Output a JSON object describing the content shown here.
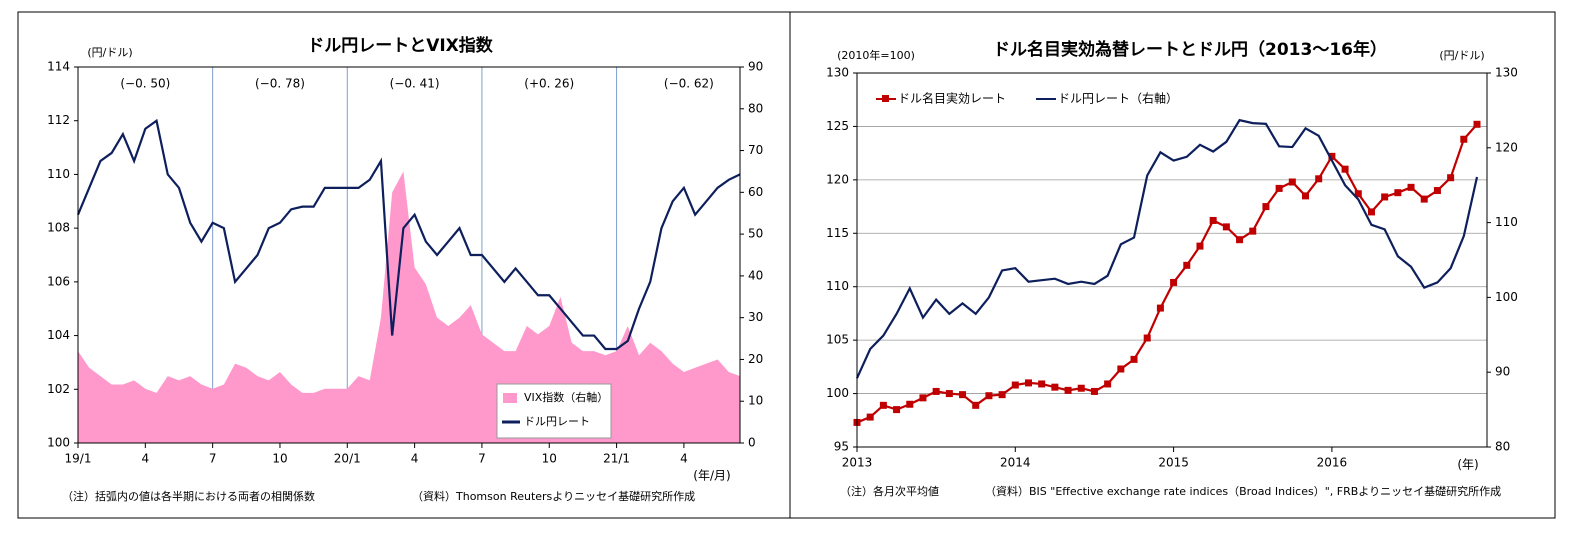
{
  "chart_data": [
    {
      "type": "line",
      "title": "ドル円レートとVIX指数",
      "y_label": "(円/ドル)",
      "x_label": "(年/月)",
      "note": "（注）括弧内の値は各半期における両者の相関係数",
      "source": "（資料）Thomson Reutersよりニッセイ基礎研究所作成",
      "categories": [
        "19/1",
        null,
        null,
        null,
        null,
        null,
        "4",
        null,
        null,
        null,
        null,
        null,
        "7",
        null,
        null,
        null,
        null,
        null,
        "10",
        null,
        null,
        null,
        null,
        null,
        "20/1",
        null,
        null,
        null,
        null,
        null,
        "4",
        null,
        null,
        null,
        null,
        null,
        "7",
        null,
        null,
        null,
        null,
        null,
        "10",
        null,
        null,
        null,
        null,
        null,
        "21/1",
        null,
        null,
        null,
        null,
        null,
        "4",
        null,
        null,
        null,
        null,
        null
      ],
      "ylim": [
        100,
        114
      ],
      "yticks": [
        100,
        102,
        104,
        106,
        108,
        110,
        112,
        114
      ],
      "y2lim": [
        0,
        90
      ],
      "y2ticks": [
        0,
        10,
        20,
        30,
        40,
        50,
        60,
        70,
        80,
        90
      ],
      "annotations": [
        {
          "text": "(−0. 50)",
          "color": "#ff0000"
        },
        {
          "text": "(−0. 78)",
          "color": "#ff0000"
        },
        {
          "text": "(−0. 41)",
          "color": "#ff0000"
        },
        {
          "text": "(+0. 26)",
          "color": "#000000"
        },
        {
          "text": "(−0. 62)",
          "color": "#ff0000"
        }
      ],
      "series": [
        {
          "name": "VIX指数（右軸）",
          "type": "area",
          "axis": "y2",
          "color": "#ff99cc",
          "values": [
            22,
            18,
            16,
            14,
            14,
            15,
            13,
            12,
            16,
            15,
            16,
            14,
            13,
            14,
            19,
            18,
            16,
            15,
            17,
            14,
            12,
            12,
            13,
            13,
            13,
            16,
            15,
            30,
            60,
            65,
            42,
            38,
            30,
            28,
            30,
            33,
            26,
            24,
            22,
            22,
            28,
            26,
            28,
            35,
            24,
            22,
            22,
            21,
            22,
            28,
            21,
            24,
            22,
            19,
            17,
            18,
            19,
            20,
            17,
            16
          ]
        },
        {
          "name": "ドル円レート",
          "type": "line",
          "color": "#0d1f5c",
          "values": [
            108.5,
            109.5,
            110.5,
            110.8,
            111.5,
            110.5,
            111.7,
            112,
            110,
            109.5,
            108.2,
            107.5,
            108.2,
            108,
            106,
            106.5,
            107,
            108,
            108.2,
            108.7,
            108.8,
            108.8,
            109.5,
            109.5,
            109.5,
            109.5,
            109.8,
            110.5,
            104,
            108,
            108.5,
            107.5,
            107,
            107.5,
            108,
            107,
            107,
            106.5,
            106,
            106.5,
            106,
            105.5,
            105.5,
            105,
            104.5,
            104,
            104,
            103.5,
            103.5,
            103.8,
            105,
            106,
            108,
            109,
            109.5,
            108.5,
            109,
            109.5,
            109.8,
            110
          ]
        }
      ]
    },
    {
      "type": "line",
      "title": "ドル名目実効為替レートとドル円（2013～16年）",
      "y_label": "(2010年=100)",
      "y2_label": "(円/ドル)",
      "x_label": "(年)",
      "note": "（注）各月次平均値",
      "source": "（資料）BIS \"Effective exchange rate indices（Broad Indices）\", FRBよりニッセイ基礎研究所作成",
      "categories": [
        "2013",
        null,
        null,
        null,
        null,
        null,
        null,
        null,
        null,
        null,
        null,
        null,
        "2014",
        null,
        null,
        null,
        null,
        null,
        null,
        null,
        null,
        null,
        null,
        null,
        "2015",
        null,
        null,
        null,
        null,
        null,
        null,
        null,
        null,
        null,
        null,
        null,
        "2016",
        null,
        null,
        null,
        null,
        null,
        null,
        null,
        null,
        null,
        null,
        null
      ],
      "ylim": [
        95,
        130
      ],
      "yticks": [
        95,
        100,
        105,
        110,
        115,
        120,
        125,
        130
      ],
      "y2lim": [
        80,
        130
      ],
      "y2ticks": [
        80,
        90,
        100,
        110,
        120,
        130
      ],
      "series": [
        {
          "name": "ドル名目実効レート",
          "type": "line",
          "markers": true,
          "color": "#c00000",
          "values": [
            97.3,
            97.8,
            98.9,
            98.5,
            99.0,
            99.6,
            100.2,
            100.0,
            99.9,
            98.9,
            99.8,
            99.9,
            100.8,
            101.0,
            100.9,
            100.6,
            100.3,
            100.5,
            100.2,
            100.9,
            102.3,
            103.2,
            105.2,
            108.0,
            110.4,
            112.0,
            113.8,
            116.2,
            115.6,
            114.4,
            115.2,
            117.5,
            119.2,
            119.8,
            118.5,
            120.1,
            122.2,
            121.0,
            118.7,
            117.0,
            118.4,
            118.8,
            119.3,
            118.2,
            119.0,
            120.2,
            123.8,
            125.2
          ]
        },
        {
          "name": "ドル円レート（右軸）",
          "type": "line",
          "axis": "y2",
          "color": "#0d1f5c",
          "values": [
            89.2,
            93.1,
            94.9,
            97.8,
            101.2,
            97.3,
            99.7,
            97.8,
            99.2,
            97.8,
            100.0,
            103.6,
            103.9,
            102.1,
            102.3,
            102.5,
            101.8,
            102.1,
            101.8,
            102.9,
            107.1,
            108.0,
            116.3,
            119.4,
            118.3,
            118.8,
            120.4,
            119.5,
            120.8,
            123.7,
            123.3,
            123.2,
            120.2,
            120.1,
            122.6,
            121.6,
            118.3,
            115.0,
            113.1,
            109.7,
            109.1,
            105.5,
            104.1,
            101.3,
            102.0,
            103.9,
            108.2,
            116.1
          ]
        }
      ]
    }
  ]
}
